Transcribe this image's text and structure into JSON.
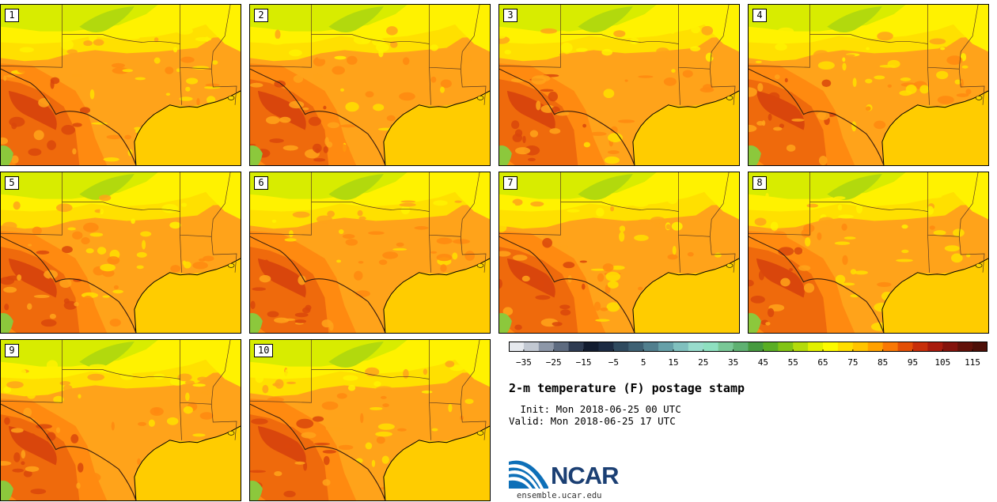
{
  "figure": {
    "title": "2-m temperature (F) postage stamp",
    "init": " Init: Mon 2018-06-25 00 UTC",
    "valid": "Valid: Mon 2018-06-25 17 UTC",
    "logo_text": "NCAR",
    "url": "ensemble.ucar.edu"
  },
  "members": [
    "1",
    "2",
    "3",
    "4",
    "5",
    "6",
    "7",
    "8",
    "9",
    "10"
  ],
  "colorbar": {
    "units": "F",
    "min": -40,
    "max": 120,
    "step": 5,
    "tick_labels": [
      "−35",
      "−25",
      "−15",
      "−5",
      "5",
      "15",
      "25",
      "35",
      "45",
      "55",
      "65",
      "75",
      "85",
      "95",
      "105",
      "115"
    ],
    "tick_values": [
      -35,
      -25,
      -15,
      -5,
      5,
      15,
      25,
      35,
      45,
      55,
      65,
      75,
      85,
      95,
      105,
      115
    ],
    "colors": [
      "#e6e9ee",
      "#c2c8d2",
      "#8d97a8",
      "#5e6b80",
      "#2e3b52",
      "#121c30",
      "#1c2b43",
      "#2f4a5f",
      "#3e6174",
      "#517f8e",
      "#66a0a8",
      "#80c0be",
      "#98dccc",
      "#8ee0c0",
      "#79c896",
      "#5fb172",
      "#469a3f",
      "#5aae24",
      "#82c414",
      "#b4db0a",
      "#e2f000",
      "#fdfb00",
      "#ffde00",
      "#ffc400",
      "#ffa100",
      "#f97804",
      "#e34f06",
      "#c72f0a",
      "#a81b0d",
      "#84130c",
      "#621109",
      "#4d0f08"
    ]
  },
  "map_colors": {
    "gulf": "#ffcc00",
    "land_base": "#ffa31a",
    "warm": "#ff8a10",
    "hot": "#ef6a0c",
    "hottest": "#d9460c",
    "cool_yellow": "#fff200",
    "light_yellow": "#ffe000",
    "lime": "#d8ec00",
    "green": "#b2d90d",
    "border": "#5a3a20"
  }
}
